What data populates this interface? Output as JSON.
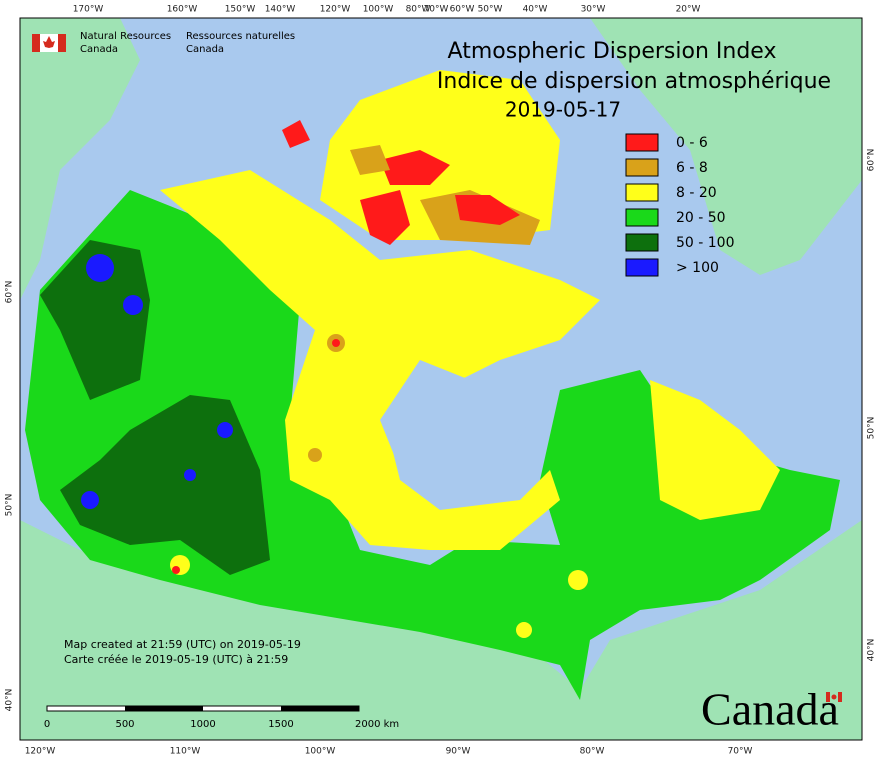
{
  "header": {
    "title": "Atmospheric Dispersion Index",
    "title_fr": "Indice de dispersion atmosphérique",
    "date": "2019-05-17"
  },
  "agency": {
    "en_1": "Natural Resources",
    "en_2": "Canada",
    "fr_1": "Ressources naturelles",
    "fr_2": "Canada"
  },
  "legend": [
    {
      "label": "0 - 6",
      "color": "#ff1a1a"
    },
    {
      "label": "6 - 8",
      "color": "#d9a21a"
    },
    {
      "label": "8 - 20",
      "color": "#ffff1a"
    },
    {
      "label": "20 - 50",
      "color": "#1ad91a"
    },
    {
      "label": "50 - 100",
      "color": "#0d700d"
    },
    {
      "label": "> 100",
      "color": "#1a1aff"
    }
  ],
  "notes": {
    "created_en": "Map created at 21:59 (UTC) on 2019-05-19",
    "created_fr": "Carte créée le 2019-05-19 (UTC) à 21:59"
  },
  "scale": {
    "labels": [
      "0",
      "500",
      "1000",
      "1500",
      "2000  km"
    ]
  },
  "graticule": {
    "top": [
      "170°W",
      "160°W",
      "150°W",
      "140°W",
      "120°W",
      "100°W",
      "80°W",
      "70°W",
      "60°W",
      "50°W",
      "40°W",
      "30°W",
      "20°W"
    ],
    "bottom": [
      "120°W",
      "110°W",
      "100°W",
      "90°W",
      "80°W",
      "70°W"
    ],
    "left": [
      "60°N",
      "50°N",
      "40°N"
    ],
    "right": [
      "60°N",
      "50°N",
      "40°N"
    ]
  },
  "wordmark": "Canada"
}
